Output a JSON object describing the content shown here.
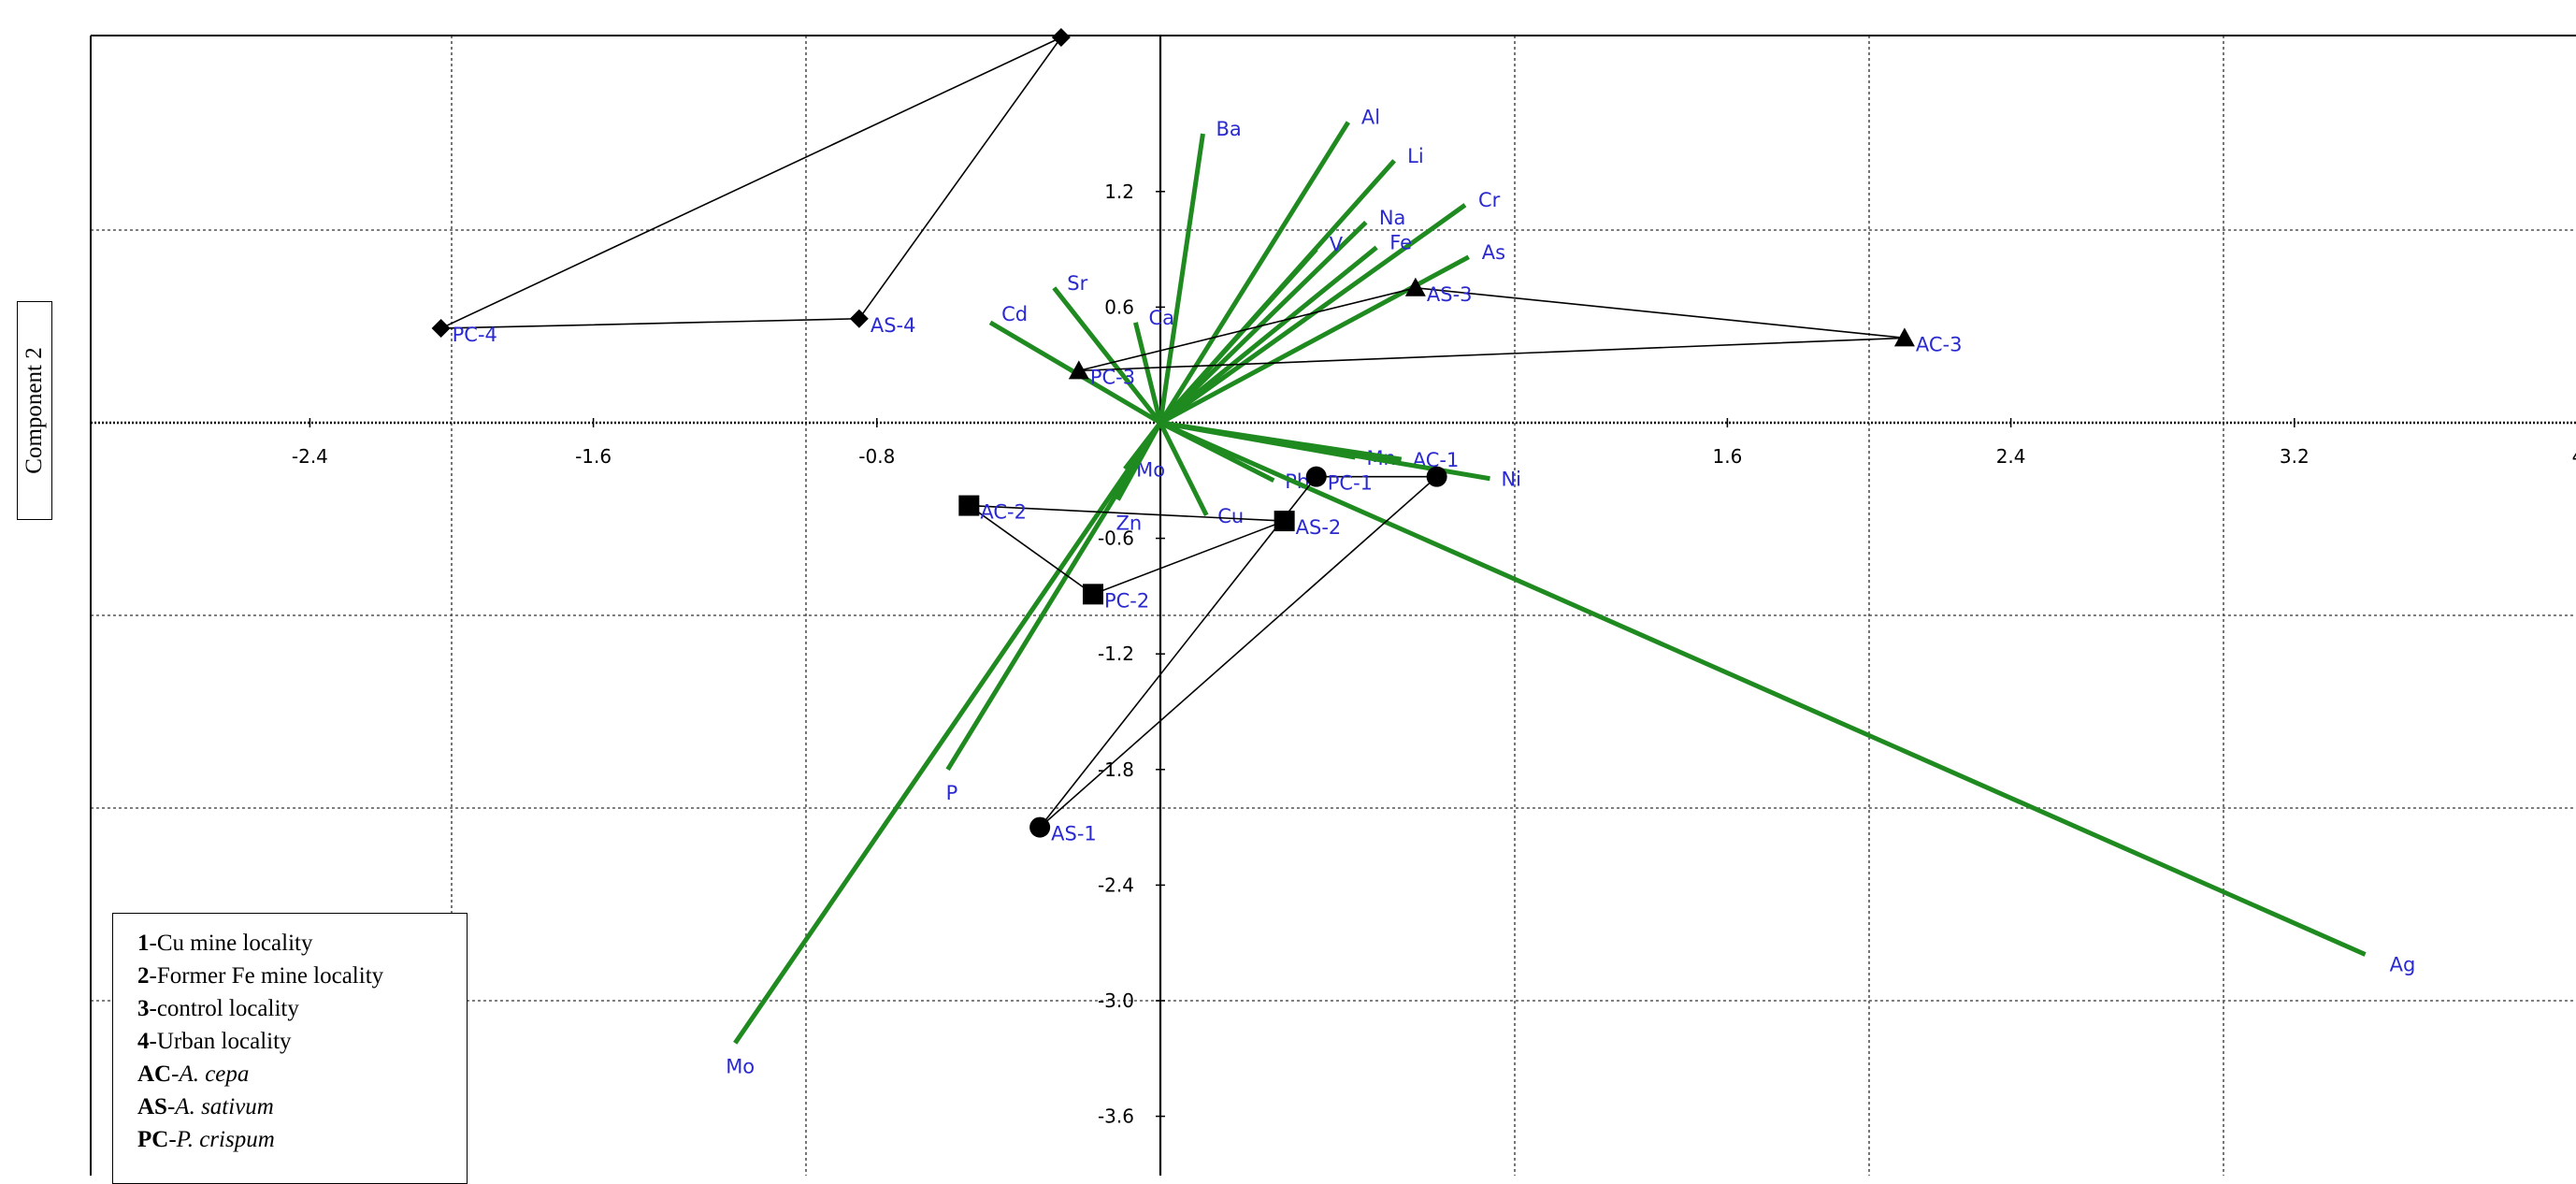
{
  "chart_data": {
    "type": "scatter",
    "title": "",
    "xlabel": "",
    "ylabel": "Component 2",
    "xlim": [
      -3.2,
      4.0
    ],
    "ylim": [
      -3.9,
      2.0
    ],
    "x_gridlines": [
      -2.0,
      -1.0,
      0.0,
      1.0,
      2.0,
      3.0
    ],
    "y_gridlines": [
      1.0,
      0.0,
      -1.0,
      -2.0,
      -3.0
    ],
    "x_ticks": [
      "-2.4",
      "-1.6",
      "-0.8",
      "1.6",
      "2.4",
      "3.2",
      "4"
    ],
    "y_ticks": [
      "1.2",
      "0.6",
      "-0.6",
      "-1.2",
      "-1.8",
      "-2.4",
      "-3.0",
      "-3.6"
    ],
    "tick_values_x": [
      -2.4,
      -1.6,
      -0.8,
      1.6,
      2.4,
      3.2,
      4.0
    ],
    "tick_values_y": [
      1.2,
      0.6,
      -0.6,
      -1.2,
      -1.8,
      -2.4,
      -3.0,
      -3.6
    ],
    "grid": true,
    "legend_position": "bottom-left",
    "loading_color": "#1f8a1f",
    "point_color": "#000000",
    "label_color": "#2a2ad0",
    "loadings": [
      {
        "label": "Ba",
        "x": 0.12,
        "y": 1.5
      },
      {
        "label": "Al",
        "x": 0.53,
        "y": 1.56
      },
      {
        "label": "Li",
        "x": 0.66,
        "y": 1.36
      },
      {
        "label": "Cr",
        "x": 0.86,
        "y": 1.13
      },
      {
        "label": "Na",
        "x": 0.58,
        "y": 1.04
      },
      {
        "label": "V",
        "x": 0.44,
        "y": 0.9
      },
      {
        "label": "Fe",
        "x": 0.61,
        "y": 0.91
      },
      {
        "label": "As",
        "x": 0.87,
        "y": 0.86
      },
      {
        "label": "Sr",
        "x": -0.3,
        "y": 0.7
      },
      {
        "label": "Cd",
        "x": -0.48,
        "y": 0.52
      },
      {
        "label": "Ca",
        "x": -0.07,
        "y": 0.52
      },
      {
        "label": "Mn",
        "x": 0.55,
        "y": -0.18
      },
      {
        "label": "AC-1",
        "x": 0.68,
        "y": -0.19
      },
      {
        "label": "Ni",
        "x": 0.93,
        "y": -0.29
      },
      {
        "label": "Pb",
        "x": 0.32,
        "y": -0.3
      },
      {
        "label": "Cu",
        "x": 0.13,
        "y": -0.48
      },
      {
        "label": "Mo",
        "x": -0.1,
        "y": -0.24
      },
      {
        "label": "Zn",
        "x": -0.12,
        "y": -0.4
      },
      {
        "label": "P",
        "x": -0.6,
        "y": -1.8
      },
      {
        "label": "Mo",
        "x": -1.2,
        "y": -3.22
      },
      {
        "label": "Ag",
        "x": 3.4,
        "y": -2.76
      }
    ],
    "scores": [
      {
        "label": "",
        "x": -0.28,
        "y": 2.0,
        "locality": 4,
        "shape": "diamond"
      },
      {
        "label": "PC-4",
        "x": -2.03,
        "y": 0.49,
        "locality": 4,
        "shape": "diamond"
      },
      {
        "label": "AS-4",
        "x": -0.85,
        "y": 0.54,
        "locality": 4,
        "shape": "diamond"
      },
      {
        "label": "AS-3",
        "x": 0.72,
        "y": 0.7,
        "locality": 3,
        "shape": "triangle"
      },
      {
        "label": "AC-3",
        "x": 2.1,
        "y": 0.44,
        "locality": 3,
        "shape": "triangle"
      },
      {
        "label": "PC-3",
        "x": -0.23,
        "y": 0.27,
        "locality": 3,
        "shape": "triangle"
      },
      {
        "label": "PC-1",
        "x": 0.44,
        "y": -0.28,
        "locality": 1,
        "shape": "circle"
      },
      {
        "label": "",
        "x": 0.78,
        "y": -0.28,
        "locality": 1,
        "shape": "circle"
      },
      {
        "label": "AS-1",
        "x": -0.34,
        "y": -2.1,
        "locality": 1,
        "shape": "circle"
      },
      {
        "label": "AC-2",
        "x": -0.54,
        "y": -0.43,
        "locality": 2,
        "shape": "square"
      },
      {
        "label": "AS-2",
        "x": 0.35,
        "y": -0.51,
        "locality": 2,
        "shape": "square"
      },
      {
        "label": "PC-2",
        "x": -0.19,
        "y": -0.89,
        "locality": 2,
        "shape": "square"
      }
    ],
    "groups": [
      {
        "locality": 4,
        "members": [
          "",
          "PC-4",
          "AS-4"
        ]
      },
      {
        "locality": 3,
        "members": [
          "AS-3",
          "AC-3",
          "PC-3"
        ]
      },
      {
        "locality": 1,
        "members": [
          "PC-1",
          "",
          "AS-1"
        ]
      },
      {
        "locality": 2,
        "members": [
          "AC-2",
          "AS-2",
          "PC-2"
        ]
      }
    ]
  },
  "legend": {
    "items": [
      {
        "key": "1",
        "text": "-Cu mine locality",
        "italic": false
      },
      {
        "key": "2",
        "text": "-Former Fe mine locality",
        "italic": false
      },
      {
        "key": "3",
        "text": "-control locality",
        "italic": false
      },
      {
        "key": "4",
        "text": "-Urban locality",
        "italic": false
      },
      {
        "key": "AC",
        "text": "A. cepa",
        "italic": true
      },
      {
        "key": "AS",
        "text": "A. sativum",
        "italic": true
      },
      {
        "key": "PC",
        "text": "P. crispum",
        "italic": true
      }
    ]
  }
}
